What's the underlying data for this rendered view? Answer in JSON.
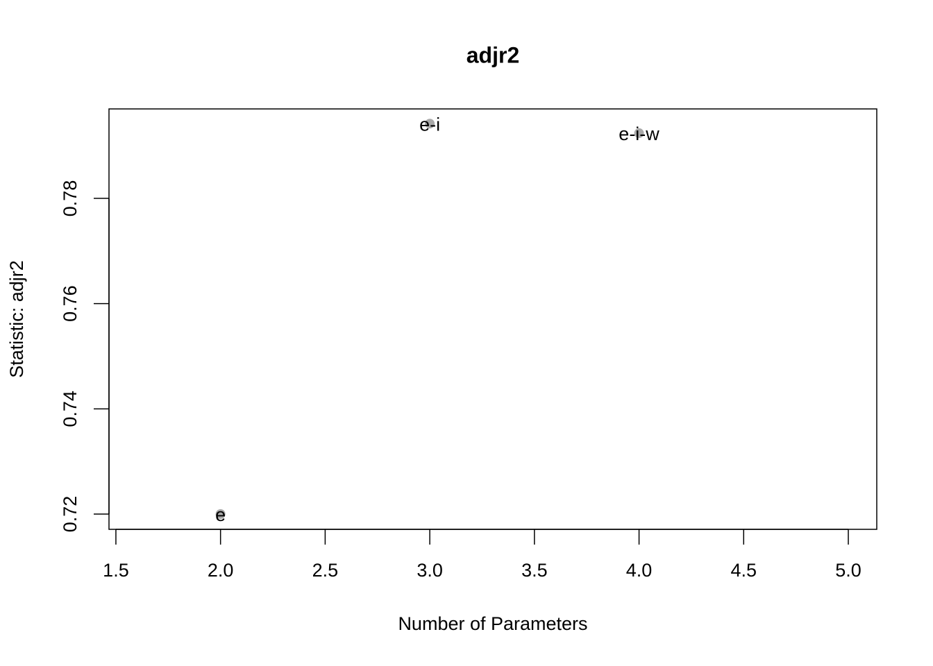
{
  "chart_data": {
    "type": "scatter",
    "title": "adjr2",
    "x_label": "Number of Parameters",
    "y_label": "Statistic: adjr2",
    "x": [
      2,
      3,
      4
    ],
    "values": [
      0.72,
      0.7942,
      0.7924
    ],
    "labels": [
      "e",
      "e-i",
      "e-i-w"
    ],
    "color": "#a9a9a9",
    "xlim": [
      1.467,
      5.136
    ],
    "xticks": [
      {
        "value": 1.5,
        "label": "1.5"
      },
      {
        "value": 2,
        "label": "2.0"
      },
      {
        "value": 2.5,
        "label": "2.5"
      },
      {
        "value": 3,
        "label": "3.0"
      },
      {
        "value": 3.5,
        "label": "3.5"
      },
      {
        "value": 4,
        "label": "4.0"
      },
      {
        "value": 4.5,
        "label": "4.5"
      },
      {
        "value": 5,
        "label": "5.0"
      }
    ],
    "ylim": [
      0.7171,
      0.797
    ],
    "yticks": [
      0.72,
      0.74,
      0.76,
      0.78
    ]
  }
}
